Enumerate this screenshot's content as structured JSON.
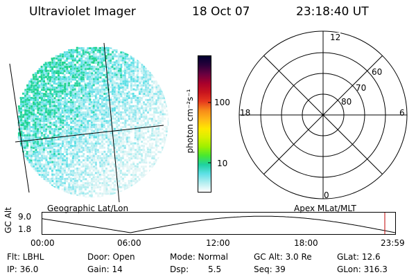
{
  "header": {
    "instrument": "Ultraviolet Imager",
    "date": "18 Oct 07",
    "time": "23:18:40 UT"
  },
  "colorbar": {
    "unit_label": "photon cm⁻²s⁻¹",
    "ticks": [
      "100",
      "10"
    ],
    "colors": [
      "#000030",
      "#2a003a",
      "#6a0040",
      "#a8002c",
      "#c8141e",
      "#e6381e",
      "#f78a1a",
      "#ffb817",
      "#ffe800",
      "#d7f000",
      "#9ff000",
      "#48e830",
      "#1ed2a0",
      "#5ee0e6",
      "#b4eef0",
      "#ffffff"
    ]
  },
  "polar_plot": {
    "ring_labels": [
      "80",
      "70",
      "60"
    ],
    "hour_labels": {
      "top": "12",
      "left": "18",
      "right": "6",
      "bottom": "0"
    }
  },
  "map_labels": {
    "left": "Geographic Lat/Lon",
    "right": "Apex MLat/MLT"
  },
  "altitude_plot": {
    "ylabel": "GC Alt",
    "yticks": [
      "9.0",
      "1.8"
    ],
    "xticks": [
      "00:00",
      "06:00",
      "12:00",
      "18:00",
      "23:59"
    ],
    "marker_color": "#c00000"
  },
  "status": {
    "flt": "Flt: LBHL",
    "ip": "IP: 36.0",
    "door": "Door: Open",
    "gain": "Gain: 14",
    "mode": "Mode: Normal",
    "dsp_label": "Dsp:",
    "dsp_value": "5.5",
    "gcalt": "GC Alt: 3.0 Re",
    "seq": "Seq: 39",
    "glat": "GLat:  12.6",
    "glon": "GLon: 316.3"
  }
}
